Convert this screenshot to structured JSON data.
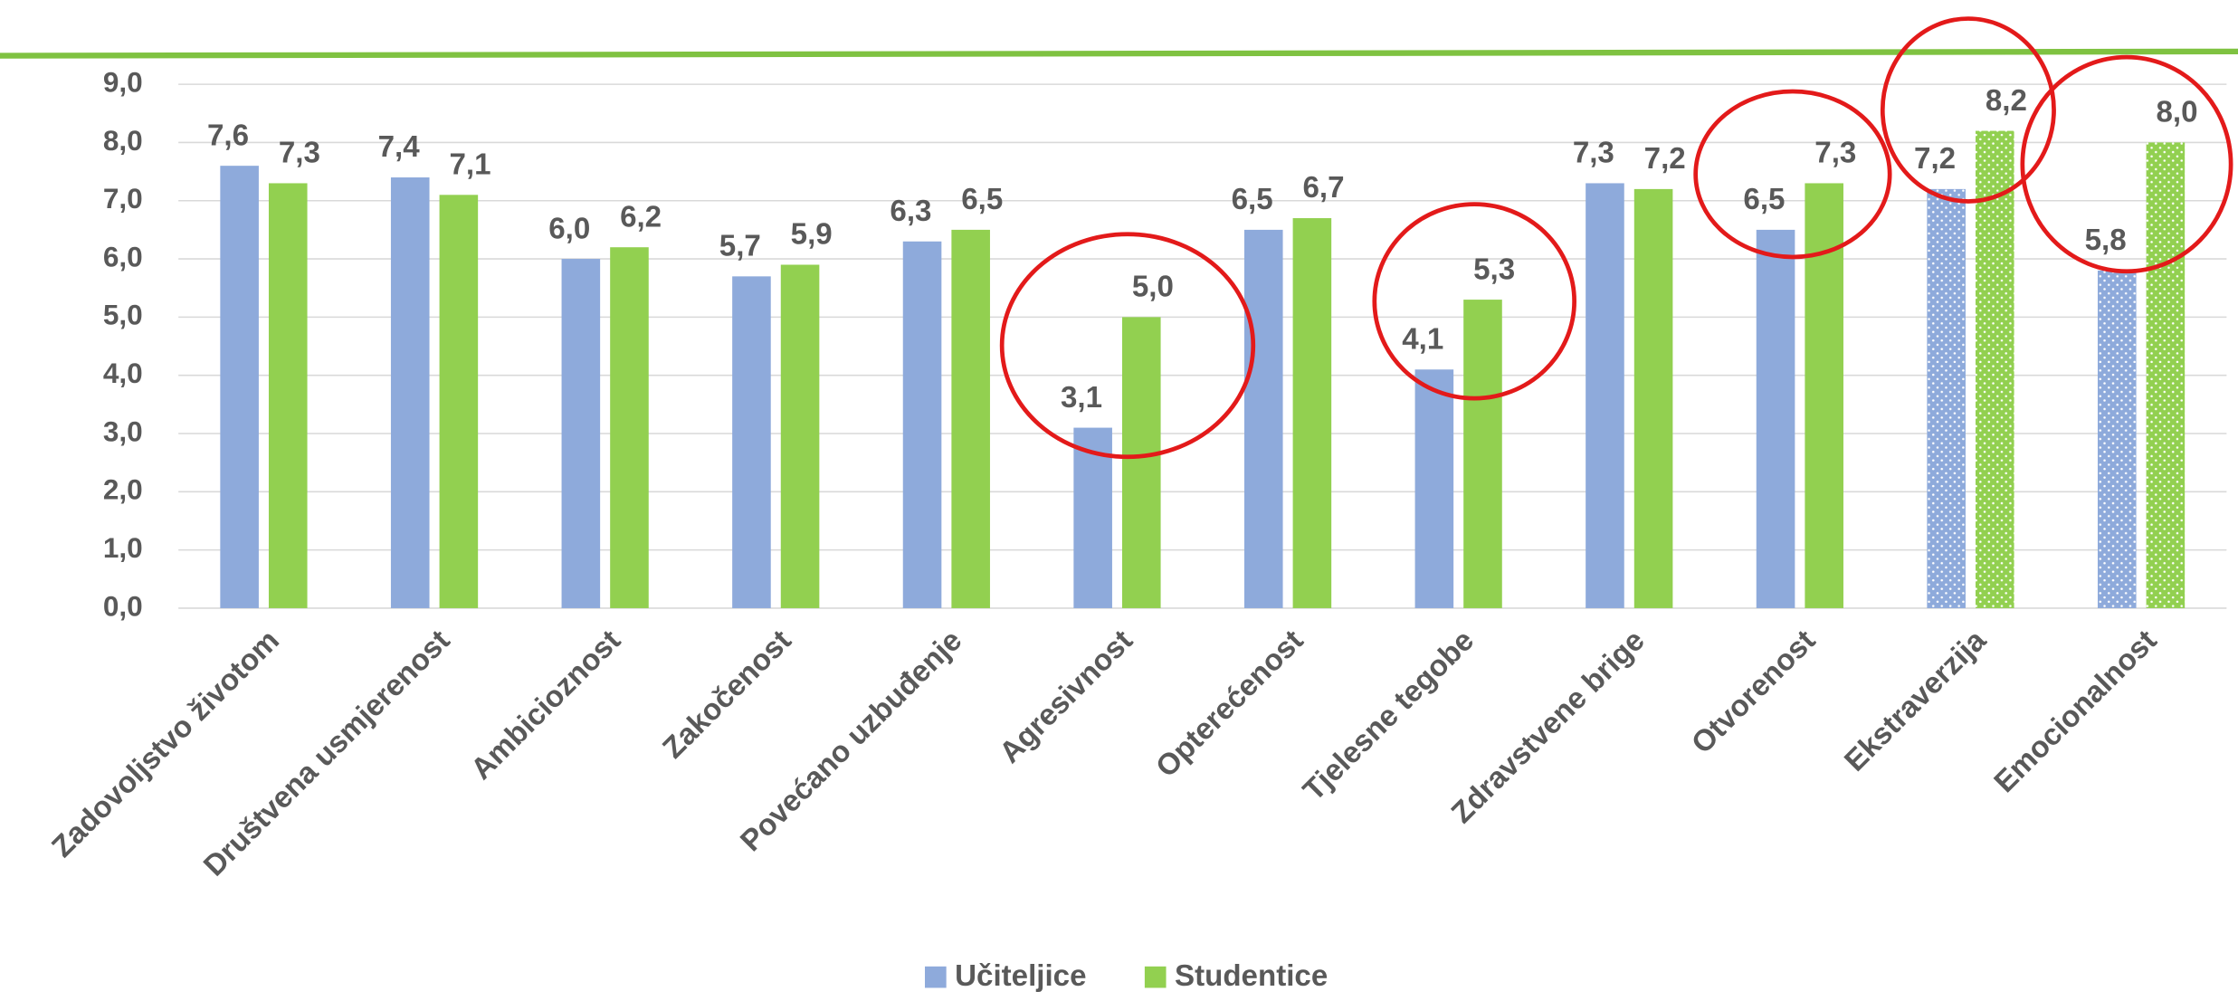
{
  "chart_data": {
    "type": "bar",
    "categories": [
      "Zadovoljstvo životom",
      "Društvena usmjerenost",
      "Ambicioznost",
      "Zakočenost",
      "Povećano uzbuđenje",
      "Agresivnost",
      "Opterećenost",
      "Tjelesne tegobe",
      "Zdravstvene brige",
      "Otvorenost",
      "Ekstraverzija",
      "Emocionalnost"
    ],
    "series": [
      {
        "name": "Učiteljice",
        "color": "#8eaadb",
        "values": [
          7.6,
          7.4,
          6.0,
          5.7,
          6.3,
          3.1,
          6.5,
          4.1,
          7.3,
          6.5,
          7.2,
          5.8
        ],
        "value_labels": [
          "7,6",
          "7,4",
          "6,0",
          "5,7",
          "6,3",
          "3,1",
          "6,5",
          "4,1",
          "7,3",
          "6,5",
          "7,2",
          "5,8"
        ]
      },
      {
        "name": "Studentice",
        "color": "#92d050",
        "values": [
          7.3,
          7.1,
          6.2,
          5.9,
          6.5,
          5.0,
          6.7,
          5.3,
          7.2,
          7.3,
          8.2,
          8.0
        ],
        "value_labels": [
          "7,3",
          "7,1",
          "6,2",
          "5,9",
          "6,5",
          "5,0",
          "6,7",
          "5,3",
          "7,2",
          "7,3",
          "8,2",
          "8,0"
        ]
      }
    ],
    "dotted": [
      false,
      false,
      false,
      false,
      false,
      false,
      false,
      false,
      false,
      false,
      true,
      true
    ],
    "ylim": [
      0,
      9
    ],
    "yticks": [
      {
        "value": 0,
        "label": "0,0"
      },
      {
        "value": 1,
        "label": "1,0"
      },
      {
        "value": 2,
        "label": "2,0"
      },
      {
        "value": 3,
        "label": "3,0"
      },
      {
        "value": 4,
        "label": "4,0"
      },
      {
        "value": 5,
        "label": "5,0"
      },
      {
        "value": 6,
        "label": "6,0"
      },
      {
        "value": 7,
        "label": "7,0"
      },
      {
        "value": 8,
        "label": "8,0"
      },
      {
        "value": 9,
        "label": "9,0"
      }
    ],
    "grid": true,
    "legend": "bottom"
  }
}
